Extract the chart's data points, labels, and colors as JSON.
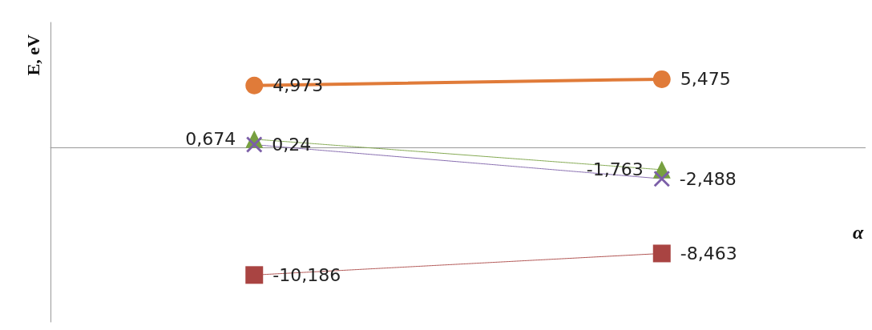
{
  "chart_data": {
    "type": "line",
    "ylabel": "E, eV",
    "xlabel": "α",
    "categories": [
      null,
      null
    ],
    "grid": false,
    "tick_labels": false,
    "series": [
      {
        "color": "#e07b39",
        "marker": "circle",
        "line_style": "solid",
        "values": [
          4.973,
          5.475
        ],
        "value_labels": [
          "4,973",
          "5,475"
        ]
      },
      {
        "color": "#77a040",
        "marker": "triangle",
        "line_style": "dotted",
        "values": [
          0.674,
          -1.763
        ],
        "value_labels": [
          "0,674",
          "-1,763"
        ]
      },
      {
        "color": "#7b5ea7",
        "marker": "cross",
        "line_style": "dotted",
        "values": [
          0.24,
          -2.488
        ],
        "value_labels": [
          "0,24",
          "-2,488"
        ]
      },
      {
        "color": "#a94442",
        "marker": "square",
        "line_style": "dotted",
        "values": [
          -10.186,
          -8.463
        ],
        "value_labels": [
          "-10,186",
          "-8,463"
        ]
      }
    ]
  }
}
